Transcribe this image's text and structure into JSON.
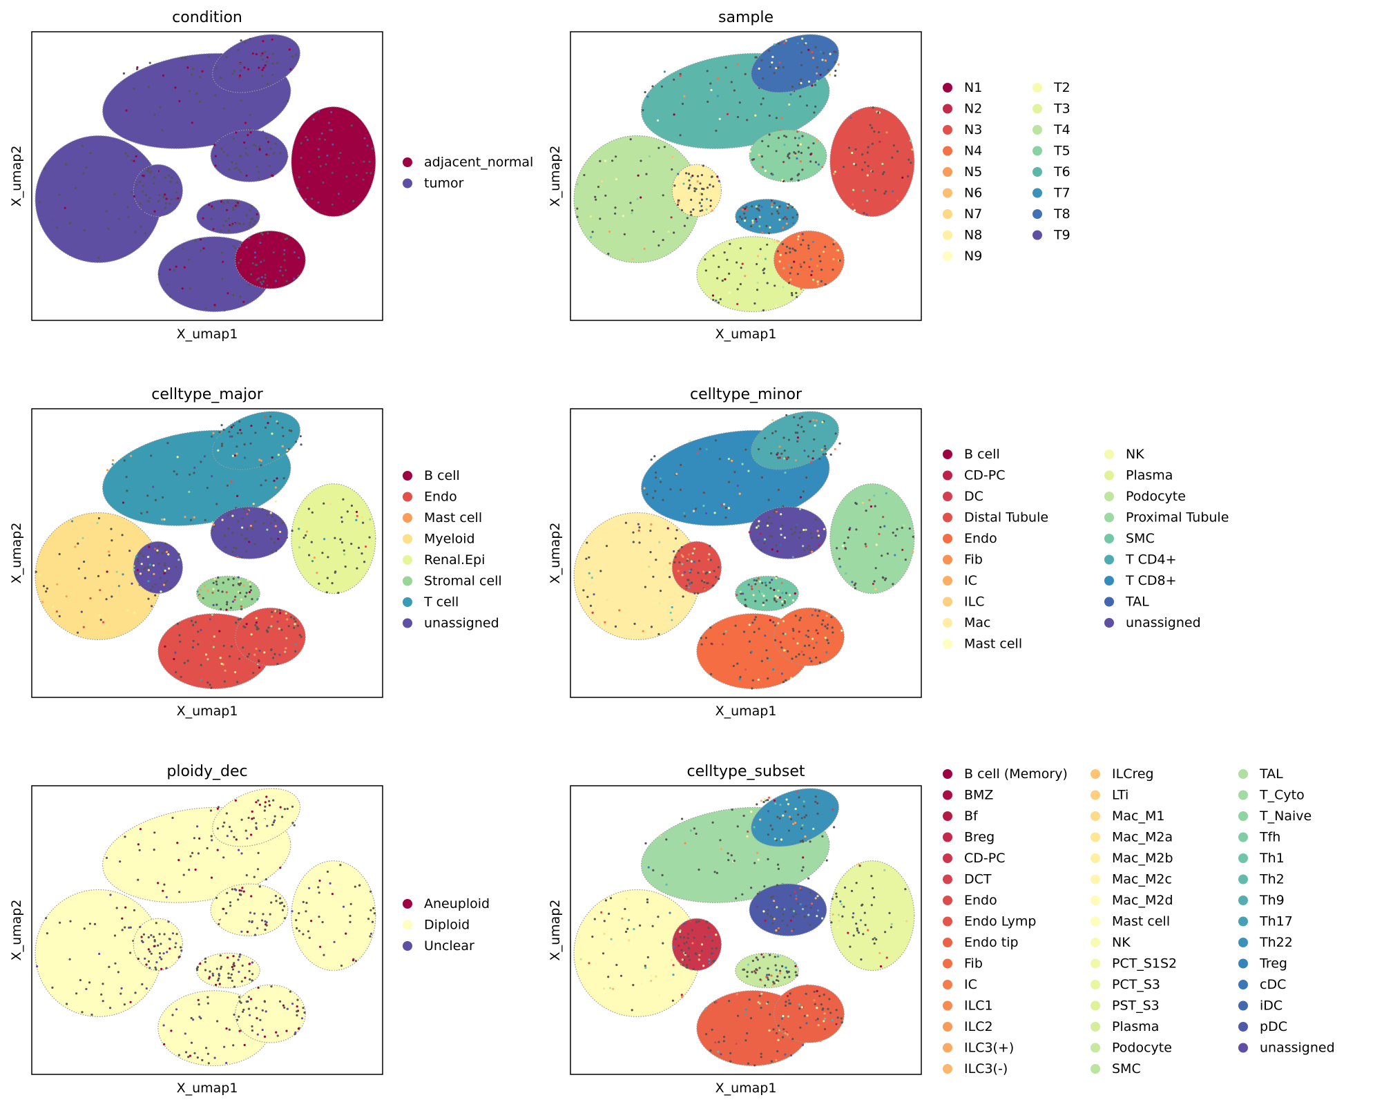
{
  "chart_data": [
    {
      "type": "scatter",
      "title": "condition",
      "xlabel": "X_umap1",
      "ylabel": "X_umap2",
      "legend_position": "right",
      "legend": [
        {
          "label": "adjacent_normal",
          "color": "#9e0142"
        },
        {
          "label": "tumor",
          "color": "#5e4fa2"
        }
      ]
    },
    {
      "type": "scatter",
      "title": "sample",
      "xlabel": "X_umap1",
      "ylabel": "X_umap2",
      "legend_position": "right",
      "legend": [
        {
          "label": "N1",
          "color": "#9e0142"
        },
        {
          "label": "N2",
          "color": "#c2294a"
        },
        {
          "label": "N3",
          "color": "#e1504a"
        },
        {
          "label": "N4",
          "color": "#f47245"
        },
        {
          "label": "N5",
          "color": "#fb9d59"
        },
        {
          "label": "N6",
          "color": "#fdbf6f"
        },
        {
          "label": "N7",
          "color": "#fed884"
        },
        {
          "label": "N8",
          "color": "#fff0a6"
        },
        {
          "label": "N9",
          "color": "#fffebe"
        },
        {
          "label": "T2",
          "color": "#f5fbae"
        },
        {
          "label": "T3",
          "color": "#e1f49b"
        },
        {
          "label": "T4",
          "color": "#bbe4a0"
        },
        {
          "label": "T5",
          "color": "#8ad2a4"
        },
        {
          "label": "T6",
          "color": "#5cb7aa"
        },
        {
          "label": "T7",
          "color": "#3a92b8"
        },
        {
          "label": "T8",
          "color": "#4171b3"
        },
        {
          "label": "T9",
          "color": "#5e4fa2"
        }
      ]
    },
    {
      "type": "scatter",
      "title": "celltype_major",
      "xlabel": "X_umap1",
      "ylabel": "X_umap2",
      "legend_position": "right",
      "legend": [
        {
          "label": "B cell",
          "color": "#9e0142"
        },
        {
          "label": "Endo",
          "color": "#e1504a"
        },
        {
          "label": "Mast cell",
          "color": "#fb9d59"
        },
        {
          "label": "Myeloid",
          "color": "#fee08b"
        },
        {
          "label": "Renal.Epi",
          "color": "#e6f598"
        },
        {
          "label": "Stromal cell",
          "color": "#99d594"
        },
        {
          "label": "T cell",
          "color": "#3a9bb2"
        },
        {
          "label": "unassigned",
          "color": "#5e4fa2"
        }
      ]
    },
    {
      "type": "scatter",
      "title": "celltype_minor",
      "xlabel": "X_umap1",
      "ylabel": "X_umap2",
      "legend_position": "right",
      "legend": [
        {
          "label": "B cell",
          "color": "#9e0142"
        },
        {
          "label": "CD-PC",
          "color": "#bc2149"
        },
        {
          "label": "DC",
          "color": "#d53e4f"
        },
        {
          "label": "Distal Tubule",
          "color": "#e1504a"
        },
        {
          "label": "Endo",
          "color": "#f46d43"
        },
        {
          "label": "Fib",
          "color": "#f99153"
        },
        {
          "label": "IC",
          "color": "#fdae61"
        },
        {
          "label": "ILC",
          "color": "#fed07e"
        },
        {
          "label": "Mac",
          "color": "#feeda2"
        },
        {
          "label": "Mast cell",
          "color": "#fffebe"
        },
        {
          "label": "NK",
          "color": "#f4faae"
        },
        {
          "label": "Plasma",
          "color": "#e0f39a"
        },
        {
          "label": "Podocyte",
          "color": "#bfe5a0"
        },
        {
          "label": "Proximal Tubule",
          "color": "#9dd9a3"
        },
        {
          "label": "SMC",
          "color": "#72c7a5"
        },
        {
          "label": "T CD4+",
          "color": "#4fabaf"
        },
        {
          "label": "T CD8+",
          "color": "#348cbc"
        },
        {
          "label": "TAL",
          "color": "#4267b0"
        },
        {
          "label": "unassigned",
          "color": "#5e4fa2"
        }
      ]
    },
    {
      "type": "scatter",
      "title": "ploidy_dec",
      "xlabel": "X_umap1",
      "ylabel": "X_umap2",
      "legend_position": "right",
      "legend": [
        {
          "label": "Aneuploid",
          "color": "#9e0142"
        },
        {
          "label": "Diploid",
          "color": "#fffebe"
        },
        {
          "label": "Unclear",
          "color": "#5e4fa2"
        }
      ]
    },
    {
      "type": "scatter",
      "title": "celltype_subset",
      "xlabel": "X_umap1",
      "ylabel": "X_umap2",
      "legend_position": "right",
      "legend": [
        {
          "label": "B cell (Memory)",
          "color": "#9e0142"
        },
        {
          "label": "BMZ",
          "color": "#a90d44"
        },
        {
          "label": "Bf",
          "color": "#b51a47"
        },
        {
          "label": "Breg",
          "color": "#c2294a"
        },
        {
          "label": "CD-PC",
          "color": "#cc364c"
        },
        {
          "label": "DCT",
          "color": "#d6424d"
        },
        {
          "label": "Endo",
          "color": "#dd4c4c"
        },
        {
          "label": "Endo Lymp",
          "color": "#e5554a"
        },
        {
          "label": "Endo tip",
          "color": "#ec6247"
        },
        {
          "label": "Fib",
          "color": "#f26e44"
        },
        {
          "label": "IC",
          "color": "#f57b4a"
        },
        {
          "label": "ILC1",
          "color": "#f88a51"
        },
        {
          "label": "ILC2",
          "color": "#fa9a58"
        },
        {
          "label": "ILC3(+)",
          "color": "#fca961"
        },
        {
          "label": "ILC3(-)",
          "color": "#fdb66b"
        },
        {
          "label": "ILCreg",
          "color": "#fdc475"
        },
        {
          "label": "LTi",
          "color": "#fed07e"
        },
        {
          "label": "Mac_M1",
          "color": "#fedb88"
        },
        {
          "label": "Mac_M2a",
          "color": "#fee694"
        },
        {
          "label": "Mac_M2b",
          "color": "#feefa1"
        },
        {
          "label": "Mac_M2c",
          "color": "#fff5ae"
        },
        {
          "label": "Mac_M2d",
          "color": "#fffbb9"
        },
        {
          "label": "Mast cell",
          "color": "#fdfebb"
        },
        {
          "label": "NK",
          "color": "#f7fbb2"
        },
        {
          "label": "PCT_S1S2",
          "color": "#f1f9a9"
        },
        {
          "label": "PCT_S3",
          "color": "#e9f6a1"
        },
        {
          "label": "PST_S3",
          "color": "#dff299"
        },
        {
          "label": "Plasma",
          "color": "#d3ed9c"
        },
        {
          "label": "Podocyte",
          "color": "#c7e89f"
        },
        {
          "label": "SMC",
          "color": "#bbe4a0"
        },
        {
          "label": "TAL",
          "color": "#afdfa3"
        },
        {
          "label": "T_Cyto",
          "color": "#a1daa4"
        },
        {
          "label": "T_Naive",
          "color": "#90d4a4"
        },
        {
          "label": "Tfh",
          "color": "#80cca5"
        },
        {
          "label": "Th1",
          "color": "#70c4a8"
        },
        {
          "label": "Th2",
          "color": "#62baac"
        },
        {
          "label": "Th9",
          "color": "#54adaf"
        },
        {
          "label": "Th17",
          "color": "#47a0b3"
        },
        {
          "label": "Th22",
          "color": "#3b92b8"
        },
        {
          "label": "Treg",
          "color": "#3585bb"
        },
        {
          "label": "cDC",
          "color": "#3a77b7"
        },
        {
          "label": "iDC",
          "color": "#4268b0"
        },
        {
          "label": "pDC",
          "color": "#4d5aa8"
        },
        {
          "label": "unassigned",
          "color": "#5e4fa2"
        }
      ]
    }
  ]
}
